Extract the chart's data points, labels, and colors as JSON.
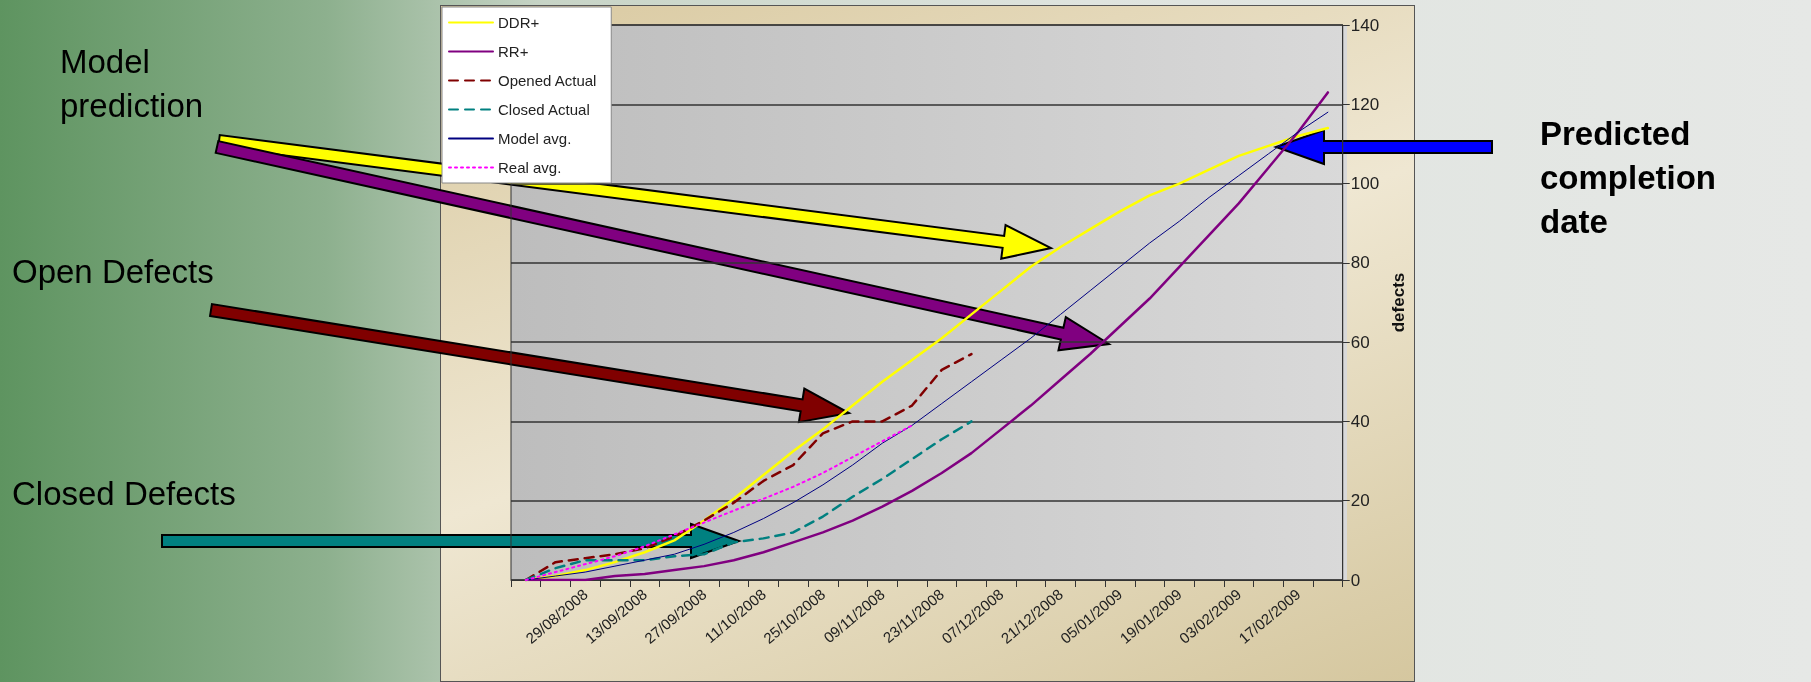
{
  "chart_data": {
    "type": "line",
    "ylabel": "defects",
    "categories": [
      null,
      null,
      "29/08/2008",
      null,
      "13/09/2008",
      null,
      "27/09/2008",
      null,
      "11/10/2008",
      null,
      "25/10/2008",
      null,
      "09/11/2008",
      null,
      "23/11/2008",
      null,
      "07/12/2008",
      null,
      "21/12/2008",
      null,
      "05/01/2009",
      null,
      "19/01/2009",
      null,
      "03/02/2009",
      null,
      "17/02/2009",
      null
    ],
    "ylim": [
      0,
      140
    ],
    "yticks": [
      0,
      20,
      40,
      60,
      80,
      100,
      120,
      140
    ],
    "grid": "y",
    "legend": "top left",
    "marker": "none",
    "annotations": [
      "Model prediction",
      "Open Defects",
      "Closed Defects",
      "Predicted completion date"
    ],
    "series": [
      {
        "name": "DDR+",
        "color": "#ffff00",
        "line_style": "solid",
        "values": [
          0,
          1,
          2.5,
          4.5,
          7,
          10,
          15,
          20.5,
          26.5,
          32.5,
          38,
          44,
          50,
          55.5,
          61,
          67,
          73,
          79,
          84,
          88.5,
          93,
          97,
          100,
          103.5,
          107,
          109.5,
          112,
          114
        ]
      },
      {
        "name": "RR+",
        "color": "#800080",
        "line_style": "solid",
        "values": [
          0,
          0,
          0,
          1,
          1.5,
          2.5,
          3.5,
          5,
          7,
          9.5,
          12,
          15,
          18.5,
          22.5,
          27,
          32,
          38,
          44,
          50.5,
          57,
          64,
          71,
          79,
          87,
          95,
          104,
          113,
          123
        ]
      },
      {
        "name": "Opened Actual",
        "color": "#800000",
        "line_style": "dashed",
        "values": [
          0,
          4.5,
          5.5,
          6.5,
          8,
          11,
          15,
          19.5,
          25,
          29,
          37,
          40,
          40,
          44,
          53,
          57,
          null,
          null,
          null,
          null,
          null,
          null,
          null,
          null,
          null,
          null,
          null,
          null
        ]
      },
      {
        "name": "Closed Actual",
        "color": "#008080",
        "line_style": "dashed",
        "values": [
          0,
          3,
          5,
          5,
          5,
          6,
          6.5,
          9.5,
          10.5,
          12,
          16,
          21,
          25.5,
          30.5,
          35.5,
          40,
          null,
          null,
          null,
          null,
          null,
          null,
          null,
          null,
          null,
          null,
          null,
          null
        ]
      },
      {
        "name": "Model avg.",
        "color": "#000080",
        "line_style": "solid",
        "values": [
          0,
          1,
          2,
          3.5,
          5,
          6.5,
          9,
          12,
          15.5,
          19.5,
          24,
          29,
          34.5,
          39,
          44.5,
          50,
          55.5,
          61,
          67,
          73,
          79,
          85,
          90.5,
          96.5,
          102,
          107.5,
          113,
          118
        ]
      },
      {
        "name": "Real avg.",
        "color": "#ff00ff",
        "line_style": "dotted",
        "values": [
          0,
          2,
          4,
          6,
          8.5,
          11.5,
          14.5,
          17.5,
          20.5,
          23.5,
          27,
          31,
          35,
          39,
          null,
          null,
          null,
          null,
          null,
          null,
          null,
          null,
          null,
          null,
          null,
          null,
          null,
          null
        ]
      }
    ]
  }
}
